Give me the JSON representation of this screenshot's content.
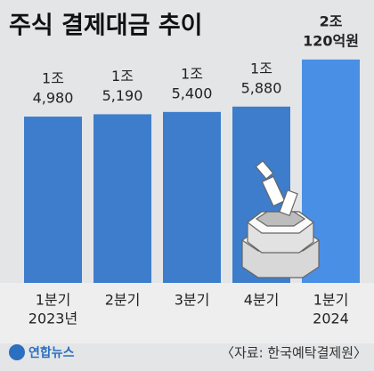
{
  "chart_data": {
    "type": "bar",
    "title": "주식 결제대금 추이",
    "categories": [
      [
        "1분기",
        "2023년"
      ],
      [
        "2분기"
      ],
      [
        "3분기"
      ],
      [
        "4분기"
      ],
      [
        "1분기",
        "2024"
      ]
    ],
    "values": [
      14980,
      15190,
      15400,
      15880,
      20120
    ],
    "value_labels": [
      [
        "1조",
        "4,980"
      ],
      [
        "1조",
        "5,190"
      ],
      [
        "1조",
        "5,400"
      ],
      [
        "1조",
        "5,880"
      ],
      [
        "2조",
        "120억원"
      ]
    ],
    "colors": [
      "#3e7dcc",
      "#3e7dcc",
      "#3e7dcc",
      "#3e7dcc",
      "#4a8fe6"
    ],
    "source": "〈자료: 한국예탁결제원〉",
    "logo": "연합뉴스"
  }
}
